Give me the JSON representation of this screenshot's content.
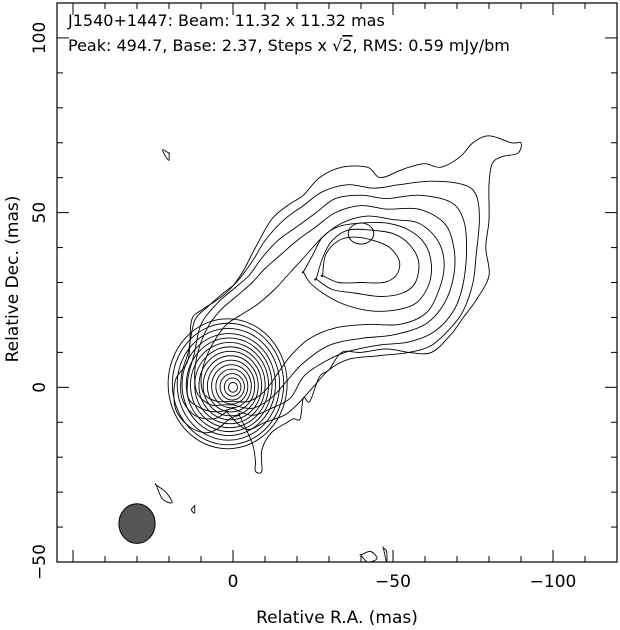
{
  "header": {
    "line1": "J1540+1447: Beam: 11.32 x 11.32 mas",
    "line2_prefix": "Peak: 494.7, Base: 2.37, Steps x ",
    "sqrt_symbol": "√",
    "sqrt_arg": "2",
    "line2_suffix": ", RMS: 0.59 mJy/bm"
  },
  "chart_data": {
    "type": "contour",
    "source": "J1540+1447",
    "xlabel": "Relative R.A. (mas)",
    "ylabel": "Relative Dec. (mas)",
    "xlim": [
      55,
      -120
    ],
    "ylim": [
      -50,
      110
    ],
    "x_ticks": [
      0,
      -50,
      -100
    ],
    "x_tick_labels": [
      "0",
      "−50",
      "−100"
    ],
    "y_ticks": [
      -50,
      0,
      50,
      100
    ],
    "y_tick_labels": [
      "−50",
      "0",
      "50",
      "100"
    ],
    "beam": {
      "major_mas": 11.32,
      "minor_mas": 11.32,
      "center": [
        30,
        -39
      ]
    },
    "peak_mjy_per_beam": 494.7,
    "base_mjy_per_beam": 2.37,
    "step_factor": "sqrt(2)",
    "rms_mjy_per_beam": 0.59,
    "core_contours": {
      "center": [
        0,
        0
      ],
      "x_radii": [
        1.4,
        2.6,
        3.8,
        5.0,
        6.2,
        7.4,
        8.6,
        9.8,
        11.0,
        12.2,
        13.4,
        14.6,
        16.0,
        17.4,
        18.6
      ],
      "y_radii": [
        1.4,
        2.6,
        3.8,
        5.0,
        6.2,
        7.4,
        8.6,
        9.8,
        11.0,
        12.2,
        13.4,
        14.6,
        16.0,
        17.4,
        18.6
      ]
    },
    "jet_knot": {
      "center": [
        -40,
        44
      ],
      "x_radius": 4.0,
      "y_radius": 3.0
    },
    "contours": [
      {
        "name": "lowest",
        "points": [
          [
            -2,
            -8
          ],
          [
            -6,
            -16
          ],
          [
            -7,
            -21
          ],
          [
            -7,
            -24
          ],
          [
            -9,
            -24
          ],
          [
            -9,
            -18
          ],
          [
            -12,
            -13
          ],
          [
            -17,
            -10
          ],
          [
            -19,
            -9
          ],
          [
            -21,
            -9
          ],
          [
            -22,
            -3
          ],
          [
            -24,
            -4
          ],
          [
            -27,
            3
          ],
          [
            -30,
            5
          ],
          [
            -34,
            10
          ],
          [
            -40,
            10
          ],
          [
            -48,
            11
          ],
          [
            -55,
            10
          ],
          [
            -62,
            10
          ],
          [
            -68,
            15
          ],
          [
            -72,
            20
          ],
          [
            -76,
            25
          ],
          [
            -80,
            32
          ],
          [
            -79,
            40
          ],
          [
            -80,
            48
          ],
          [
            -80,
            58
          ],
          [
            -81,
            64
          ],
          [
            -84,
            66
          ],
          [
            -89,
            67
          ],
          [
            -90,
            70
          ],
          [
            -87,
            70
          ],
          [
            -80,
            72
          ],
          [
            -75,
            70
          ],
          [
            -71,
            66
          ],
          [
            -65,
            63
          ],
          [
            -60,
            64
          ],
          [
            -55,
            63
          ],
          [
            -52,
            62
          ],
          [
            -46,
            60
          ],
          [
            -42,
            63
          ],
          [
            -34,
            63
          ],
          [
            -27,
            60
          ],
          [
            -22,
            55
          ],
          [
            -17,
            52
          ],
          [
            -12,
            48
          ],
          [
            -7,
            40
          ],
          [
            -3,
            33
          ],
          [
            1,
            28
          ],
          [
            5,
            25
          ],
          [
            10,
            22
          ],
          [
            13,
            19
          ],
          [
            14,
            8
          ],
          [
            18,
            2
          ],
          [
            18,
            -6
          ],
          [
            14,
            -11
          ],
          [
            9,
            -13
          ],
          [
            5,
            -12
          ],
          [
            1,
            -9
          ],
          [
            -2,
            -8
          ]
        ]
      },
      {
        "name": "L2",
        "points": [
          [
            2,
            -7
          ],
          [
            -4,
            -12
          ],
          [
            -10,
            -10
          ],
          [
            -16,
            -8
          ],
          [
            -20,
            -5
          ],
          [
            -25,
            0
          ],
          [
            -30,
            5
          ],
          [
            -36,
            8
          ],
          [
            -45,
            9
          ],
          [
            -55,
            10
          ],
          [
            -62,
            12
          ],
          [
            -68,
            17
          ],
          [
            -72,
            22
          ],
          [
            -75,
            30
          ],
          [
            -76,
            38
          ],
          [
            -77,
            48
          ],
          [
            -76,
            55
          ],
          [
            -72,
            58
          ],
          [
            -62,
            59
          ],
          [
            -52,
            58
          ],
          [
            -44,
            57
          ],
          [
            -36,
            58
          ],
          [
            -28,
            56
          ],
          [
            -22,
            52
          ],
          [
            -16,
            48
          ],
          [
            -10,
            42
          ],
          [
            -6,
            36
          ],
          [
            -1,
            30
          ],
          [
            3,
            27
          ],
          [
            8,
            23
          ],
          [
            12,
            19
          ],
          [
            14,
            10
          ],
          [
            16,
            4
          ],
          [
            16,
            -3
          ],
          [
            12,
            -8
          ],
          [
            6,
            -9
          ],
          [
            2,
            -7
          ]
        ]
      },
      {
        "name": "L3",
        "points": [
          [
            0,
            -6
          ],
          [
            -6,
            -8
          ],
          [
            -12,
            -6
          ],
          [
            -18,
            -3
          ],
          [
            -22,
            3
          ],
          [
            -28,
            7
          ],
          [
            -35,
            10
          ],
          [
            -45,
            12
          ],
          [
            -55,
            13
          ],
          [
            -63,
            16
          ],
          [
            -69,
            22
          ],
          [
            -72,
            30
          ],
          [
            -73,
            40
          ],
          [
            -72,
            48
          ],
          [
            -68,
            53
          ],
          [
            -58,
            55
          ],
          [
            -48,
            54
          ],
          [
            -40,
            55
          ],
          [
            -32,
            54
          ],
          [
            -26,
            50
          ],
          [
            -20,
            46
          ],
          [
            -14,
            42
          ],
          [
            -9,
            37
          ],
          [
            -5,
            32
          ],
          [
            0,
            28
          ],
          [
            5,
            24
          ],
          [
            10,
            18
          ],
          [
            12,
            10
          ],
          [
            14,
            3
          ],
          [
            14,
            -3
          ],
          [
            10,
            -6
          ],
          [
            5,
            -7
          ],
          [
            0,
            -6
          ]
        ]
      },
      {
        "name": "L4",
        "points": [
          [
            0,
            -5
          ],
          [
            -6,
            -6
          ],
          [
            -12,
            -3
          ],
          [
            -17,
            2
          ],
          [
            -22,
            7
          ],
          [
            -30,
            12
          ],
          [
            -40,
            14
          ],
          [
            -50,
            15
          ],
          [
            -60,
            18
          ],
          [
            -66,
            24
          ],
          [
            -69,
            32
          ],
          [
            -69,
            40
          ],
          [
            -66,
            47
          ],
          [
            -58,
            51
          ],
          [
            -48,
            51
          ],
          [
            -40,
            52
          ],
          [
            -32,
            50
          ],
          [
            -26,
            46
          ],
          [
            -20,
            42
          ],
          [
            -15,
            38
          ],
          [
            -10,
            34
          ],
          [
            -6,
            30
          ],
          [
            -1,
            26
          ],
          [
            4,
            22
          ],
          [
            8,
            17
          ],
          [
            11,
            10
          ],
          [
            12,
            3
          ],
          [
            11,
            -2
          ],
          [
            7,
            -5
          ],
          [
            3,
            -5
          ],
          [
            0,
            -5
          ]
        ]
      },
      {
        "name": "L5",
        "points": [
          [
            0,
            -4
          ],
          [
            -5,
            -4
          ],
          [
            -10,
            -1
          ],
          [
            -14,
            4
          ],
          [
            -18,
            9
          ],
          [
            -24,
            14
          ],
          [
            -32,
            17
          ],
          [
            -42,
            18
          ],
          [
            -52,
            18
          ],
          [
            -60,
            21
          ],
          [
            -64,
            27
          ],
          [
            -66,
            35
          ],
          [
            -64,
            42
          ],
          [
            -58,
            47
          ],
          [
            -50,
            48
          ],
          [
            -42,
            49
          ],
          [
            -34,
            47
          ],
          [
            -28,
            43
          ],
          [
            -23,
            38
          ],
          [
            -18,
            33
          ],
          [
            -13,
            28
          ],
          [
            -8,
            24
          ],
          [
            -3,
            21
          ],
          [
            2,
            18
          ],
          [
            6,
            13
          ],
          [
            9,
            7
          ],
          [
            10,
            2
          ],
          [
            9,
            -2
          ],
          [
            5,
            -4
          ],
          [
            0,
            -4
          ]
        ]
      },
      {
        "name": "L6",
        "points": [
          [
            -22,
            33
          ],
          [
            -25,
            38
          ],
          [
            -28,
            43
          ],
          [
            -33,
            46
          ],
          [
            -40,
            47
          ],
          [
            -48,
            47
          ],
          [
            -55,
            45
          ],
          [
            -60,
            41
          ],
          [
            -62,
            35
          ],
          [
            -61,
            29
          ],
          [
            -57,
            24
          ],
          [
            -50,
            22
          ],
          [
            -42,
            22
          ],
          [
            -34,
            24
          ],
          [
            -28,
            27
          ],
          [
            -24,
            30
          ],
          [
            -22,
            33
          ]
        ]
      },
      {
        "name": "L7",
        "points": [
          [
            -26,
            31
          ],
          [
            -28,
            37
          ],
          [
            -31,
            42
          ],
          [
            -36,
            45
          ],
          [
            -43,
            45
          ],
          [
            -50,
            44
          ],
          [
            -55,
            41
          ],
          [
            -58,
            36
          ],
          [
            -57,
            30
          ],
          [
            -53,
            27
          ],
          [
            -46,
            26
          ],
          [
            -38,
            27
          ],
          [
            -31,
            28
          ],
          [
            -26,
            31
          ]
        ]
      },
      {
        "name": "L8",
        "points": [
          [
            -28,
            32
          ],
          [
            -29,
            38
          ],
          [
            -33,
            42
          ],
          [
            -38,
            43
          ],
          [
            -44,
            42
          ],
          [
            -49,
            40
          ],
          [
            -52,
            36
          ],
          [
            -51,
            32
          ],
          [
            -47,
            30
          ],
          [
            -40,
            30
          ],
          [
            -33,
            30
          ],
          [
            -28,
            32
          ]
        ]
      },
      {
        "name": "isolated-top-1",
        "points": [
          [
            20,
            67
          ],
          [
            22,
            68
          ],
          [
            21,
            66
          ],
          [
            20,
            65
          ],
          [
            20,
            67
          ]
        ]
      },
      {
        "name": "isolated-lower-1",
        "points": [
          [
            24,
            -28
          ],
          [
            22,
            -32
          ],
          [
            19,
            -33
          ],
          [
            21,
            -30
          ],
          [
            24,
            -28
          ]
        ]
      },
      {
        "name": "isolated-lower-2",
        "points": [
          [
            12,
            -34
          ],
          [
            13,
            -35
          ],
          [
            12,
            -36
          ],
          [
            12,
            -34
          ]
        ]
      },
      {
        "name": "isolated-bottom-1",
        "points": [
          [
            -40,
            -48
          ],
          [
            -43,
            -47
          ],
          [
            -45,
            -49
          ],
          [
            -42,
            -50
          ],
          [
            -40,
            -48
          ]
        ]
      },
      {
        "name": "isolated-bottom-2",
        "points": [
          [
            -47,
            -46
          ],
          [
            -48,
            -47
          ],
          [
            -48,
            -50
          ],
          [
            -47,
            -46
          ]
        ]
      },
      {
        "name": "isolated-top-2",
        "points": [
          [
            -10,
            108
          ],
          [
            -10,
            110
          ]
        ]
      }
    ]
  }
}
